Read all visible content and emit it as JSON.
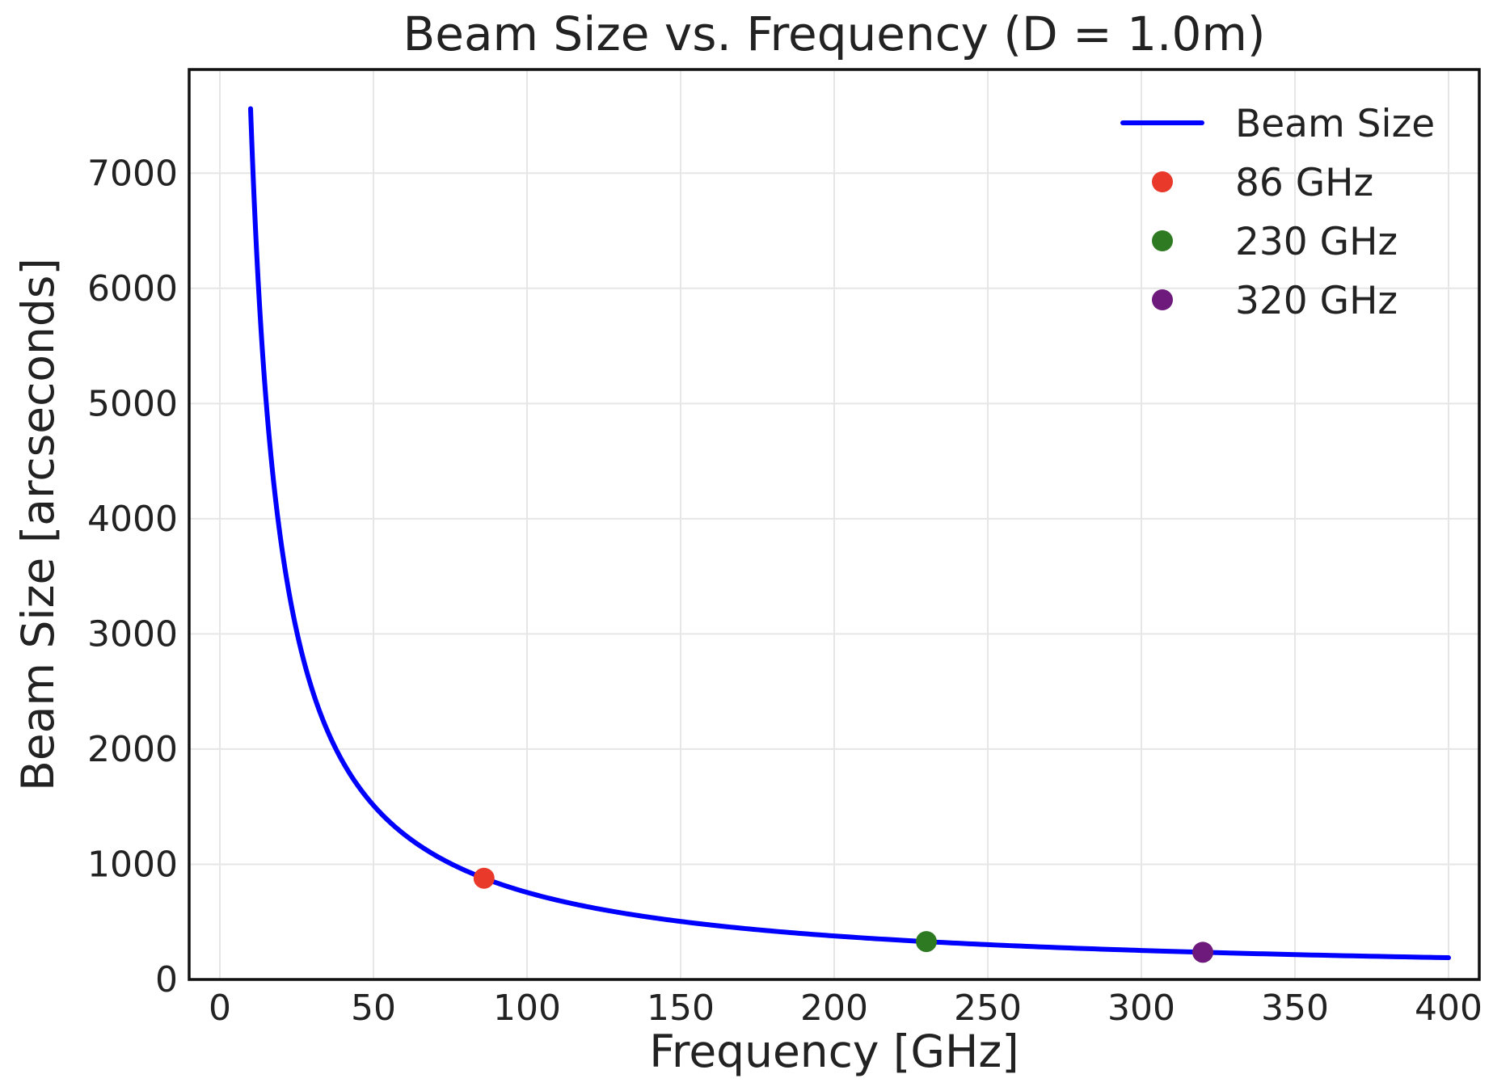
{
  "chart_data": {
    "type": "line",
    "title": "Beam Size vs. Frequency (D = 1.0m)",
    "xlabel": "Frequency [GHz]",
    "ylabel": "Beam Size [arcseconds]",
    "xlim": [
      -10,
      410
    ],
    "ylim": [
      0,
      7900
    ],
    "grid": true,
    "legend_position": "top-right",
    "x_ticks": [
      0,
      50,
      100,
      150,
      200,
      250,
      300,
      350,
      400
    ],
    "x_tick_labels": [
      "0",
      "50",
      "100",
      "150",
      "200",
      "250",
      "300",
      "350",
      "400"
    ],
    "y_ticks": [
      0,
      1000,
      2000,
      3000,
      4000,
      5000,
      6000,
      7000
    ],
    "y_tick_labels": [
      "0",
      "1000",
      "2000",
      "3000",
      "4000",
      "5000",
      "6000",
      "7000"
    ],
    "series": [
      {
        "name": "Beam Size",
        "kind": "line",
        "color": "#0000ff",
        "formula": "y = 75600 / x",
        "x_range": [
          10,
          400
        ]
      }
    ],
    "markers": [
      {
        "name": "86 GHz",
        "x": 86,
        "y": 879,
        "color": "#e8392a"
      },
      {
        "name": "230 GHz",
        "x": 230,
        "y": 329,
        "color": "#2e7a22"
      },
      {
        "name": "320 GHz",
        "x": 320,
        "y": 236,
        "color": "#6e1a7c"
      }
    ],
    "legend": [
      {
        "label": "Beam Size",
        "kind": "line",
        "color": "#0000ff"
      },
      {
        "label": "86 GHz",
        "kind": "point",
        "color": "#e8392a"
      },
      {
        "label": "230 GHz",
        "kind": "point",
        "color": "#2e7a22"
      },
      {
        "label": "320 GHz",
        "kind": "point",
        "color": "#6e1a7c"
      }
    ]
  }
}
